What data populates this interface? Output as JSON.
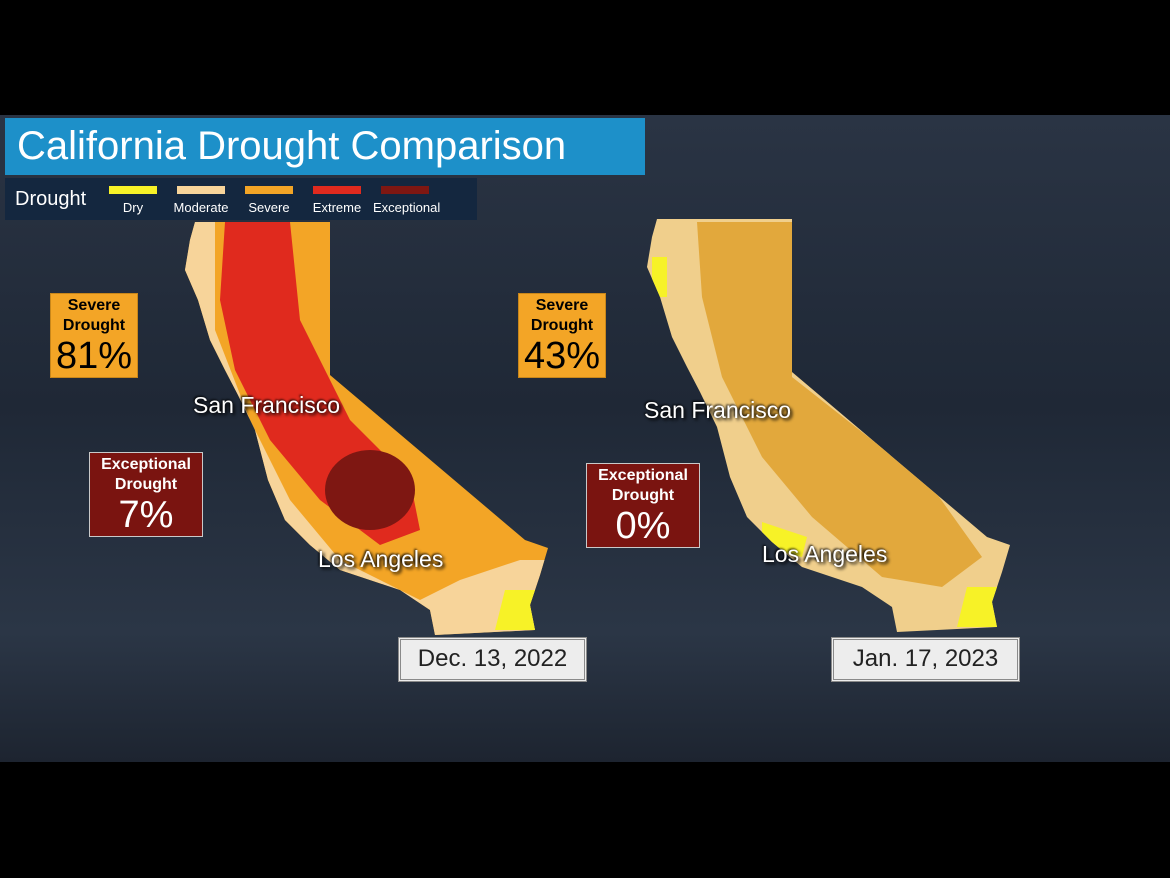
{
  "header": {
    "title": "California Drought Comparison"
  },
  "legend": {
    "title": "Drought",
    "items": [
      {
        "label": "Dry",
        "color": "#f7f227"
      },
      {
        "label": "Moderate",
        "color": "#f7d49a"
      },
      {
        "label": "Severe",
        "color": "#f3a526"
      },
      {
        "label": "Extreme",
        "color": "#e02a1e"
      },
      {
        "label": "Exceptional",
        "color": "#7e1712"
      }
    ]
  },
  "maps": [
    {
      "severe": {
        "label": "Severe Drought",
        "value": "81%"
      },
      "exceptional": {
        "label": "Exceptional Drought",
        "value": "7%"
      },
      "cities": [
        "San Francisco",
        "Los Angeles"
      ],
      "date": "Dec. 13, 2022"
    },
    {
      "severe": {
        "label": "Severe Drought",
        "value": "43%"
      },
      "exceptional": {
        "label": "Exceptional Drought",
        "value": "0%"
      },
      "cities": [
        "San Francisco",
        "Los Angeles"
      ],
      "date": "Jan. 17, 2023"
    }
  ]
}
